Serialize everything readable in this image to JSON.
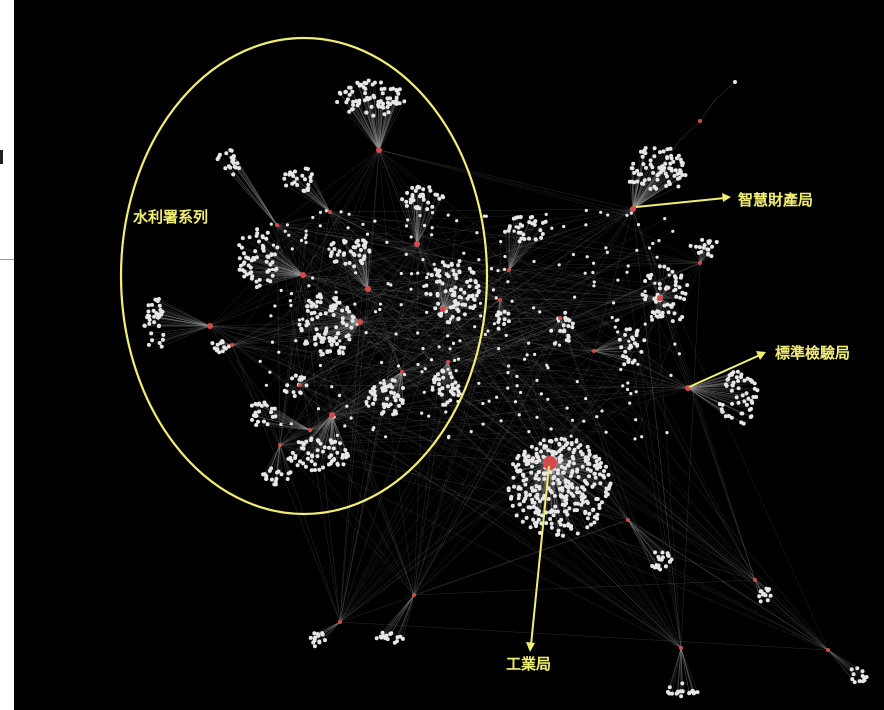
{
  "colors": {
    "background": "#000000",
    "node": "#e6e6e6",
    "hub": "#d44b4b",
    "edge": "#9a9a9a",
    "annotation": "#f2ee74"
  },
  "annotations": {
    "water_resources": "水利署系列",
    "intellectual_property": "智慧財產局",
    "standards_inspection": "標準檢驗局",
    "industrial": "工業局"
  }
}
